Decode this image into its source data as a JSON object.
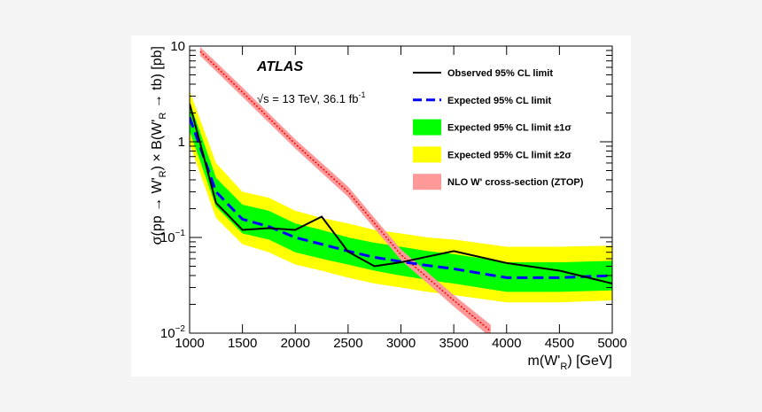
{
  "chart_data": {
    "type": "limit",
    "annotations": {
      "experiment": "ATLAS",
      "energy": "√s = 13 TeV, 36.1 fb",
      "energy_sup": "-1"
    },
    "xlabel": [
      "m(W'",
      "R",
      ") [GeV]"
    ],
    "ylabel": [
      "σ(pp → W'",
      "R",
      ") × B(W'",
      "R",
      " → tb) [pb]"
    ],
    "log_y": true,
    "xlim": [
      1000,
      5000
    ],
    "xticks": [
      1000,
      1500,
      2000,
      2500,
      3000,
      3500,
      4000,
      4500,
      5000
    ],
    "ylim": [
      0.01,
      10
    ],
    "yticks": [
      {
        "value": 0.01,
        "label": "10",
        "exponent": "−2"
      },
      {
        "value": 0.1,
        "label": "10",
        "exponent": "−1"
      },
      1,
      10
    ],
    "x": [
      1000,
      1250,
      1500,
      1750,
      2000,
      2250,
      2500,
      2750,
      3000,
      3250,
      3500,
      4000,
      4500,
      5000
    ],
    "series": [
      {
        "name": "Observed 95% CL limit",
        "color": "#000000",
        "style": "line",
        "values": [
          2.5,
          0.23,
          0.12,
          0.125,
          0.12,
          0.165,
          0.071,
          0.05,
          0.055,
          0.063,
          0.072,
          0.054,
          0.045,
          0.033
        ]
      },
      {
        "name": "Expected 95% CL limit",
        "color": "#0000ff",
        "style": "dashed",
        "values": [
          1.8,
          0.3,
          0.155,
          0.13,
          0.1,
          0.085,
          0.072,
          0.062,
          0.056,
          0.051,
          0.047,
          0.038,
          0.038,
          0.04
        ]
      },
      {
        "name": "Expected 95% CL limit ±1σ",
        "color": "#00ff00",
        "style": "band",
        "low": [
          1.3,
          0.21,
          0.11,
          0.095,
          0.07,
          0.06,
          0.052,
          0.045,
          0.04,
          0.036,
          0.033,
          0.027,
          0.027,
          0.028
        ],
        "high": [
          2.6,
          0.42,
          0.22,
          0.19,
          0.14,
          0.12,
          0.1,
          0.088,
          0.08,
          0.072,
          0.067,
          0.055,
          0.055,
          0.057
        ]
      },
      {
        "name": "Expected 95% CL limit ±2σ",
        "color": "#ffff00",
        "style": "band",
        "low": [
          0.95,
          0.16,
          0.085,
          0.07,
          0.052,
          0.045,
          0.038,
          0.033,
          0.03,
          0.027,
          0.025,
          0.021,
          0.021,
          0.022
        ],
        "high": [
          3.4,
          0.6,
          0.3,
          0.26,
          0.19,
          0.16,
          0.14,
          0.12,
          0.11,
          0.1,
          0.095,
          0.08,
          0.08,
          0.082
        ]
      },
      {
        "name": "NLO W' cross-section (ZTOP)",
        "color": "#ff9999",
        "line_color": "#ff0000",
        "style": "theory",
        "x": [
          1100,
          1500,
          2000,
          2500,
          3000,
          3500,
          3850
        ],
        "values": [
          8.8,
          3.3,
          0.95,
          0.3,
          0.066,
          0.022,
          0.0105
        ],
        "low": [
          7.9,
          2.95,
          0.85,
          0.265,
          0.058,
          0.019,
          0.009
        ],
        "high": [
          9.8,
          3.7,
          1.06,
          0.34,
          0.075,
          0.025,
          0.0122
        ]
      }
    ]
  }
}
